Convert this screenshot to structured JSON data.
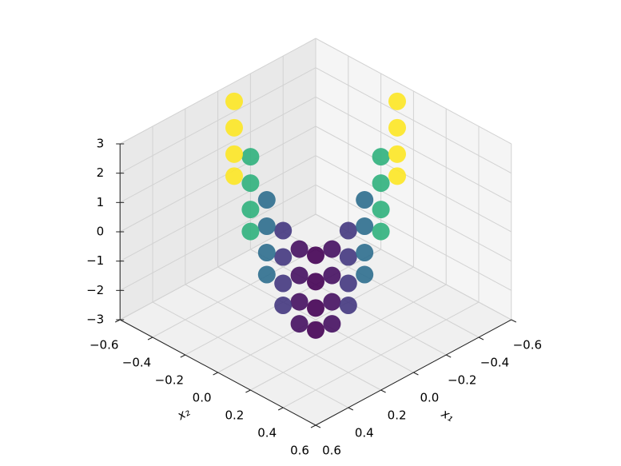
{
  "chart_data": {
    "type": "scatter3d",
    "x_label": "x₁",
    "y_label": "x₂",
    "colormap": "viridis",
    "grid": true,
    "xlim": [
      -0.6,
      0.6
    ],
    "ylim": [
      -0.6,
      0.6
    ],
    "zlim": [
      -3,
      3
    ],
    "xticks": [
      {
        "value": -0.6,
        "label": "−0.6"
      },
      {
        "value": -0.4,
        "label": "−0.4"
      },
      {
        "value": -0.2,
        "label": "−0.2"
      },
      {
        "value": 0,
        "label": "0.0"
      },
      {
        "value": 0.2,
        "label": "0.2"
      },
      {
        "value": 0.4,
        "label": "0.4"
      },
      {
        "value": 0.6,
        "label": "0.6"
      }
    ],
    "yticks": [
      {
        "value": -0.6,
        "label": "−0.6"
      },
      {
        "value": -0.4,
        "label": "−0.4"
      },
      {
        "value": -0.2,
        "label": "−0.2"
      },
      {
        "value": 0,
        "label": "0.0"
      },
      {
        "value": 0.2,
        "label": "0.2"
      },
      {
        "value": 0.4,
        "label": "0.4"
      },
      {
        "value": 0.6,
        "label": "0.6"
      }
    ],
    "zticks": [
      {
        "value": -3,
        "label": "−3"
      },
      {
        "value": -2,
        "label": "−2"
      },
      {
        "value": -1,
        "label": "−1"
      },
      0,
      1,
      2,
      3
    ],
    "x": [
      -0.05,
      -0.1,
      -0.15,
      -0.2,
      -0.25,
      -0.3,
      -0.35,
      -0.4,
      -0.45,
      -0.5,
      -0.55,
      0.1,
      0.05,
      0,
      -0.05,
      -0.1,
      -0.15,
      -0.2,
      -0.25,
      -0.3,
      -0.35,
      -0.4,
      0.25,
      0.2,
      0.15,
      0.1,
      0.05,
      0,
      -0.05,
      -0.1,
      -0.15,
      -0.2,
      -0.25,
      0.375,
      0.325,
      0.275,
      0.225,
      0.175,
      0.125,
      0.075,
      0.025,
      -0.025,
      -0.075,
      -0.125
    ],
    "y": [
      -0.55,
      -0.5,
      -0.45,
      -0.4,
      -0.35,
      -0.3,
      -0.25,
      -0.2,
      -0.15,
      -0.1,
      -0.05,
      -0.4,
      -0.35,
      -0.3,
      -0.25,
      -0.2,
      -0.15,
      -0.1,
      -0.05,
      0,
      0.05,
      0.1,
      -0.25,
      -0.2,
      -0.15,
      -0.1,
      -0.05,
      0,
      0.05,
      0.1,
      0.15,
      0.2,
      0.25,
      -0.125,
      -0.075,
      -0.025,
      0.025,
      0.075,
      0.125,
      0.175,
      0.225,
      0.275,
      0.325,
      0.375
    ],
    "z": [
      2.65,
      0.76,
      -0.71,
      -1.76,
      -2.39,
      -2.6,
      -2.39,
      -1.76,
      -0.71,
      0.76,
      2.65,
      2.65,
      0.76,
      -0.71,
      -1.76,
      -2.39,
      -2.6,
      -2.39,
      -1.76,
      -0.71,
      0.76,
      2.65,
      2.65,
      0.76,
      -0.71,
      -1.76,
      -2.39,
      -2.6,
      -2.39,
      -1.76,
      -0.71,
      0.76,
      2.65,
      2.65,
      0.76,
      -0.71,
      -1.76,
      -2.39,
      -2.6,
      -2.39,
      -1.76,
      -0.71,
      0.76,
      2.65
    ]
  }
}
